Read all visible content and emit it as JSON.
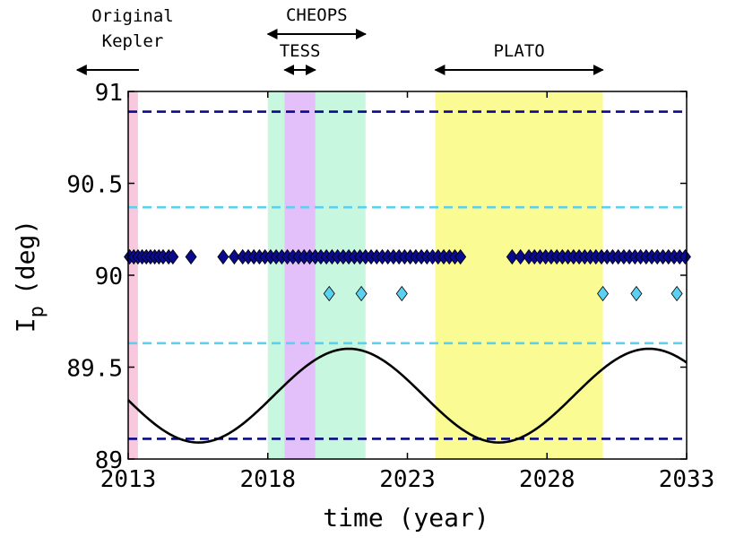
{
  "chart_data": {
    "type": "scatter",
    "xlabel": "time (year)",
    "ylabel_main": "I",
    "ylabel_sub": "p",
    "ylabel_unit": "(deg)",
    "xlim": [
      2013,
      2033
    ],
    "ylim": [
      89,
      91
    ],
    "xticks": [
      2013,
      2018,
      2023,
      2028,
      2033
    ],
    "yticks": [
      89,
      89.5,
      90,
      90.5,
      91
    ],
    "ytick_labels": [
      "89",
      "89.5",
      "90",
      "90.5",
      "91"
    ],
    "missions": [
      {
        "name": "Kepler",
        "label_lines": [
          "Original",
          "Kepler"
        ],
        "start": 2013.0,
        "end": 2013.35,
        "color": "#f7c8de",
        "arrow": "left"
      },
      {
        "name": "CHEOPS",
        "label_lines": [
          "CHEOPS"
        ],
        "start": 2018.0,
        "end": 2021.5,
        "color": "#c8f7e0",
        "arrow": "both"
      },
      {
        "name": "TESS",
        "label_lines": [
          "TESS"
        ],
        "start": 2018.6,
        "end": 2019.7,
        "color": "#e4c0fa",
        "arrow": "both"
      },
      {
        "name": "PLATO",
        "label_lines": [
          "PLATO"
        ],
        "start": 2024.0,
        "end": 2030.0,
        "color": "#fbfb94",
        "arrow": "both"
      }
    ],
    "reference_lines": [
      {
        "name": "dark-upper",
        "y": 90.89,
        "color": "#0a0a8c"
      },
      {
        "name": "light-upper",
        "y": 90.37,
        "color": "#5bd0f0"
      },
      {
        "name": "light-lower",
        "y": 89.63,
        "color": "#5bd0f0"
      },
      {
        "name": "dark-lower",
        "y": 89.11,
        "color": "#0a0a8c"
      }
    ],
    "curve": {
      "mean": 89.345,
      "amplitude": 0.255,
      "period": 10.75,
      "peak_time": 2020.9,
      "color": "#000000"
    },
    "series": [
      {
        "name": "dark-blue-transits",
        "color": "#0a0a8c",
        "y": 90.1,
        "x": [
          2013.05,
          2013.2,
          2013.35,
          2013.5,
          2013.65,
          2013.8,
          2013.95,
          2014.1,
          2014.25,
          2014.45,
          2014.6,
          2015.25,
          2016.4,
          2016.8,
          2017.1,
          2017.3,
          2017.5,
          2017.7,
          2017.9,
          2018.1,
          2018.3,
          2018.5,
          2018.7,
          2018.9,
          2019.1,
          2019.3,
          2019.5,
          2019.7,
          2019.9,
          2020.1,
          2020.3,
          2020.5,
          2020.7,
          2020.9,
          2021.1,
          2021.3,
          2021.5,
          2021.7,
          2021.9,
          2022.1,
          2022.3,
          2022.5,
          2022.7,
          2022.9,
          2023.1,
          2023.3,
          2023.5,
          2023.7,
          2023.9,
          2024.1,
          2024.3,
          2024.5,
          2024.7,
          2024.9,
          2026.75,
          2027.05,
          2027.35,
          2027.55,
          2027.75,
          2027.95,
          2028.15,
          2028.35,
          2028.55,
          2028.75,
          2028.95,
          2029.15,
          2029.35,
          2029.55,
          2029.75,
          2029.95,
          2030.15,
          2030.35,
          2030.55,
          2030.75,
          2030.95,
          2031.15,
          2031.35,
          2031.55,
          2031.75,
          2031.95,
          2032.15,
          2032.35,
          2032.55,
          2032.75,
          2032.95
        ]
      },
      {
        "name": "light-blue-transits",
        "color": "#5bd0f0",
        "y": 89.9,
        "x": [
          2020.2,
          2021.35,
          2022.8,
          2030.0,
          2031.2,
          2032.65
        ]
      }
    ]
  }
}
